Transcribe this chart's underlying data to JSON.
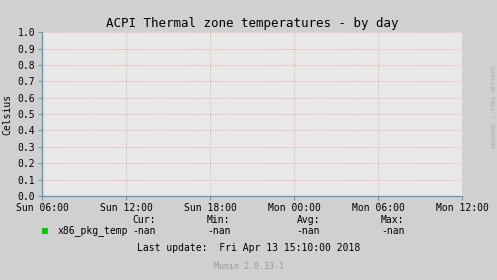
{
  "title": "ACPI Thermal zone temperatures - by day",
  "ylabel": "Celsius",
  "bg_color": "#d0d0d0",
  "plot_bg_color": "#e8e8e8",
  "grid_color": "#ff9999",
  "grid_style": ":",
  "ylim": [
    0.0,
    1.0
  ],
  "yticks": [
    0.0,
    0.1,
    0.2,
    0.3,
    0.4,
    0.5,
    0.6,
    0.7,
    0.8,
    0.9,
    1.0
  ],
  "xtick_labels": [
    "Sun 06:00",
    "Sun 12:00",
    "Sun 18:00",
    "Mon 00:00",
    "Mon 06:00",
    "Mon 12:00"
  ],
  "legend_label": "x86_pkg_temp",
  "legend_color": "#00cc00",
  "cur_label": "Cur:",
  "cur_val": "-nan",
  "min_label": "Min:",
  "min_val": "-nan",
  "avg_label": "Avg:",
  "avg_val": "-nan",
  "max_label": "Max:",
  "max_val": "-nan",
  "last_update": "Last update:  Fri Apr 13 15:10:00 2018",
  "munin_version": "Munin 2.0.33-1",
  "watermark": "RRDTOOL / TOBI OETIKER",
  "axis_color": "#6699bb",
  "title_fontsize": 9,
  "tick_fontsize": 7,
  "small_fontsize": 6,
  "font_family": "monospace"
}
